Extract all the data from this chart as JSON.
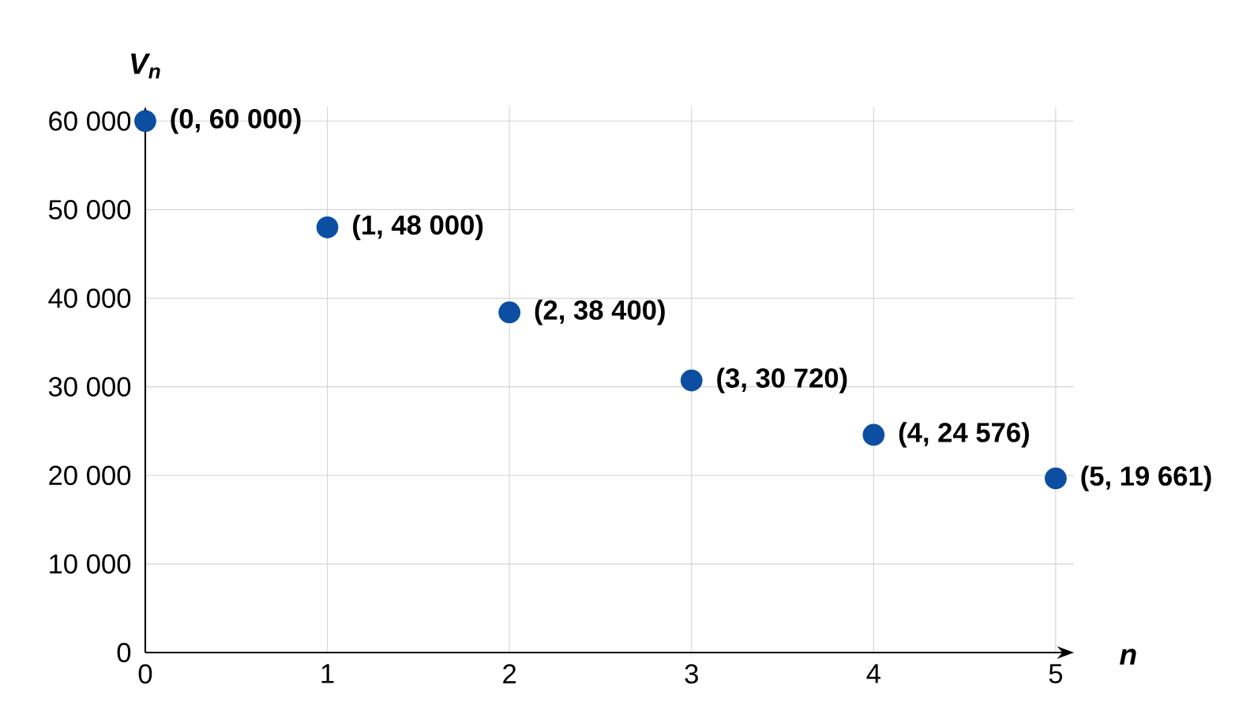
{
  "chart_data": {
    "type": "scatter",
    "xlabel": "n",
    "ylabel": "V$_{n}$",
    "x": [
      0,
      1,
      2,
      3,
      4,
      5
    ],
    "series": [
      {
        "color": "#0b4ea2",
        "values": [
          60000,
          48000,
          38400,
          30720,
          24576,
          19661
        ],
        "value_labels": [
          "(0, 60 000)",
          "(1, 48 000)",
          "(2, 38 400)",
          "(3, 30 720)",
          "(4, 24 576)",
          "(5, 19 661)"
        ]
      }
    ],
    "xlim": [
      0,
      5.1
    ],
    "ylim": [
      0,
      61600
    ],
    "xticks": [
      0,
      1,
      2,
      3,
      4,
      5
    ],
    "yticks": [
      0,
      {
        "value": 10000,
        "label": "10 000"
      },
      {
        "value": 20000,
        "label": "20 000"
      },
      {
        "value": 30000,
        "label": "30 000"
      },
      {
        "value": 40000,
        "label": "40 000"
      },
      {
        "value": 50000,
        "label": "50 000"
      },
      {
        "value": 60000,
        "label": "60 000"
      }
    ],
    "grid": true,
    "marker": "circle"
  }
}
